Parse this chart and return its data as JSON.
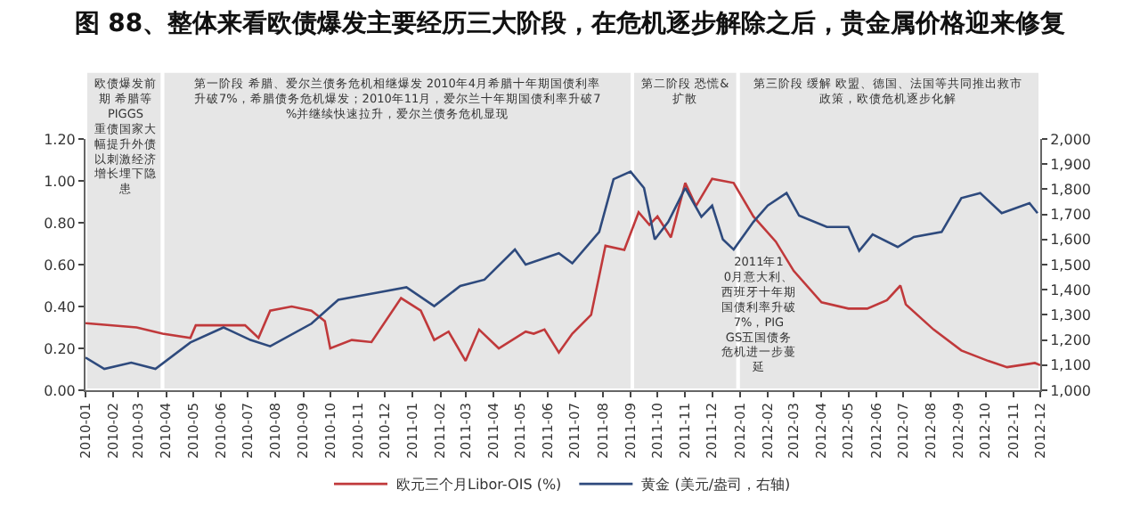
{
  "chart_data": {
    "type": "line",
    "title": "图 88、整体来看欧债爆发主要经历三大阶段，在危机逐步解除之后，贵金属价格迎来修复",
    "series": [
      {
        "name": "欧元三个月Libor-OIS (%)",
        "color": "#c0393b",
        "x": [
          "2010-01-01",
          "2010-02-27",
          "2010-03-28",
          "2010-04-28",
          "2010-05-04",
          "2010-06-28",
          "2010-07-13",
          "2010-07-26",
          "2010-08-19",
          "2010-09-10",
          "2010-09-25",
          "2010-10-01",
          "2010-10-25",
          "2010-11-16",
          "2010-12-19",
          "2011-01-10",
          "2011-01-25",
          "2011-02-10",
          "2011-03-01",
          "2011-03-16",
          "2011-04-07",
          "2011-05-07",
          "2011-05-16",
          "2011-05-28",
          "2011-06-13",
          "2011-06-28",
          "2011-07-19",
          "2011-08-04",
          "2011-08-25",
          "2011-09-10",
          "2011-09-22",
          "2011-10-01",
          "2011-10-16",
          "2011-11-01",
          "2011-11-13",
          "2011-12-01",
          "2011-12-25",
          "2012-01-16",
          "2012-02-10",
          "2012-03-01",
          "2012-04-01",
          "2012-05-01",
          "2012-05-22",
          "2012-06-13",
          "2012-06-28",
          "2012-07-04",
          "2012-08-04",
          "2012-09-04",
          "2012-10-04",
          "2012-10-25",
          "2012-11-25",
          "2012-12-01"
        ],
        "values": [
          0.32,
          0.3,
          0.27,
          0.25,
          0.31,
          0.31,
          0.25,
          0.38,
          0.4,
          0.38,
          0.33,
          0.2,
          0.24,
          0.23,
          0.44,
          0.38,
          0.24,
          0.28,
          0.14,
          0.29,
          0.2,
          0.28,
          0.27,
          0.29,
          0.18,
          0.27,
          0.36,
          0.69,
          0.67,
          0.85,
          0.79,
          0.83,
          0.73,
          0.99,
          0.88,
          1.01,
          0.99,
          0.83,
          0.71,
          0.57,
          0.42,
          0.39,
          0.39,
          0.43,
          0.5,
          0.41,
          0.29,
          0.19,
          0.14,
          0.11,
          0.13,
          0.12
        ]
      },
      {
        "name": "黄金 (美元/盎司，右轴)",
        "color": "#2e4a7d",
        "axis": "y2",
        "x": [
          "2010-01-01",
          "2010-01-22",
          "2010-02-21",
          "2010-03-20",
          "2010-04-28",
          "2010-06-04",
          "2010-07-04",
          "2010-07-26",
          "2010-09-10",
          "2010-10-10",
          "2010-11-25",
          "2010-12-25",
          "2011-01-25",
          "2011-02-23",
          "2011-03-22",
          "2011-04-25",
          "2011-05-07",
          "2011-06-13",
          "2011-06-28",
          "2011-07-28",
          "2011-08-13",
          "2011-09-01",
          "2011-09-16",
          "2011-09-28",
          "2011-10-13",
          "2011-11-01",
          "2011-11-19",
          "2011-12-01",
          "2011-12-13",
          "2011-12-25",
          "2012-01-16",
          "2012-02-01",
          "2012-02-22",
          "2012-03-07",
          "2012-04-07",
          "2012-05-01",
          "2012-05-13",
          "2012-05-28",
          "2012-06-25",
          "2012-07-13",
          "2012-08-13",
          "2012-09-04",
          "2012-09-25",
          "2012-10-19",
          "2012-11-19",
          "2012-11-28"
        ],
        "values": [
          1130,
          1085,
          1110,
          1085,
          1190,
          1250,
          1200,
          1175,
          1265,
          1360,
          1390,
          1410,
          1335,
          1415,
          1440,
          1560,
          1500,
          1545,
          1505,
          1630,
          1840,
          1870,
          1805,
          1600,
          1670,
          1805,
          1690,
          1735,
          1600,
          1560,
          1670,
          1735,
          1785,
          1695,
          1650,
          1650,
          1555,
          1620,
          1570,
          1610,
          1630,
          1765,
          1785,
          1705,
          1745,
          1705
        ]
      }
    ],
    "xlim": [
      "2010-01-01",
      "2012-12-01"
    ],
    "xticks": [
      "2010-01",
      "2010-02",
      "2010-03",
      "2010-04",
      "2010-05",
      "2010-06",
      "2010-07",
      "2010-08",
      "2010-09",
      "2010-10",
      "2010-11",
      "2010-12",
      "2011-01",
      "2011-02",
      "2011-03",
      "2011-04",
      "2011-05",
      "2011-06",
      "2011-07",
      "2011-08",
      "2011-09",
      "2011-10",
      "2011-11",
      "2011-12",
      "2012-01",
      "2012-02",
      "2012-03",
      "2012-04",
      "2012-05",
      "2012-06",
      "2012-07",
      "2012-08",
      "2012-09",
      "2012-10",
      "2012-11",
      "2012-12"
    ],
    "ylim": [
      0,
      1.2
    ],
    "yticks": [
      {
        "value": 0,
        "label": "0.00"
      },
      {
        "value": 0.2,
        "label": "0.20"
      },
      {
        "value": 0.4,
        "label": "0.40"
      },
      {
        "value": 0.6,
        "label": "0.60"
      },
      {
        "value": 0.8,
        "label": "0.80"
      },
      {
        "value": 1,
        "label": "1.00"
      },
      {
        "value": 1.2,
        "label": "1.20"
      }
    ],
    "y2lim": [
      1000,
      2000
    ],
    "y2ticks": [
      {
        "value": 1000,
        "label": "1,000"
      },
      {
        "value": 1100,
        "label": "1,100"
      },
      {
        "value": 1200,
        "label": "1,200"
      },
      {
        "value": 1300,
        "label": "1,300"
      },
      {
        "value": 1400,
        "label": "1,400"
      },
      {
        "value": 1500,
        "label": "1,500"
      },
      {
        "value": 1600,
        "label": "1,600"
      },
      {
        "value": 1700,
        "label": "1,700"
      },
      {
        "value": 1800,
        "label": "1,800"
      },
      {
        "value": 1900,
        "label": "1,900"
      },
      {
        "value": 2000,
        "label": "2,000"
      }
    ],
    "bands": [
      {
        "axis": "x",
        "from": "2010-01-01",
        "to": "2010-03-28",
        "color": "#e6e6e6",
        "label": "欧债爆发前期 希腊等PIGGS重债国家大幅提升外债以刺激经济增长埋下隐患"
      },
      {
        "axis": "x",
        "from": "2010-03-28",
        "to": "2011-09-03",
        "color": "#e6e6e6",
        "label": "第一阶段 希腊、爱尔兰债务危机相继爆发 2010年4月希腊十年期国债利率升破7%，希腊债务危机爆发；2010年11月，爱尔兰十年期国债利率升破7%并继续快速拉升，爱尔兰债务危机显现"
      },
      {
        "axis": "x",
        "from": "2011-09-03",
        "to": "2011-12-30",
        "color": "#e6e6e6",
        "label": "第二阶段 恐慌&扩散"
      },
      {
        "axis": "x",
        "from": "2011-12-30",
        "to": "2012-12-01",
        "color": "#e6e6e6",
        "label": "第三阶段 缓解 欧盟、德国、法国等共同推出救市政策，欧债危机逐步化解"
      }
    ],
    "annotations": [
      "2011年10月意大利、西班牙十年期国债利率升破7%，PIGGS五国债务危机进一步蔓延"
    ],
    "grid": false,
    "legend": "bottom"
  }
}
